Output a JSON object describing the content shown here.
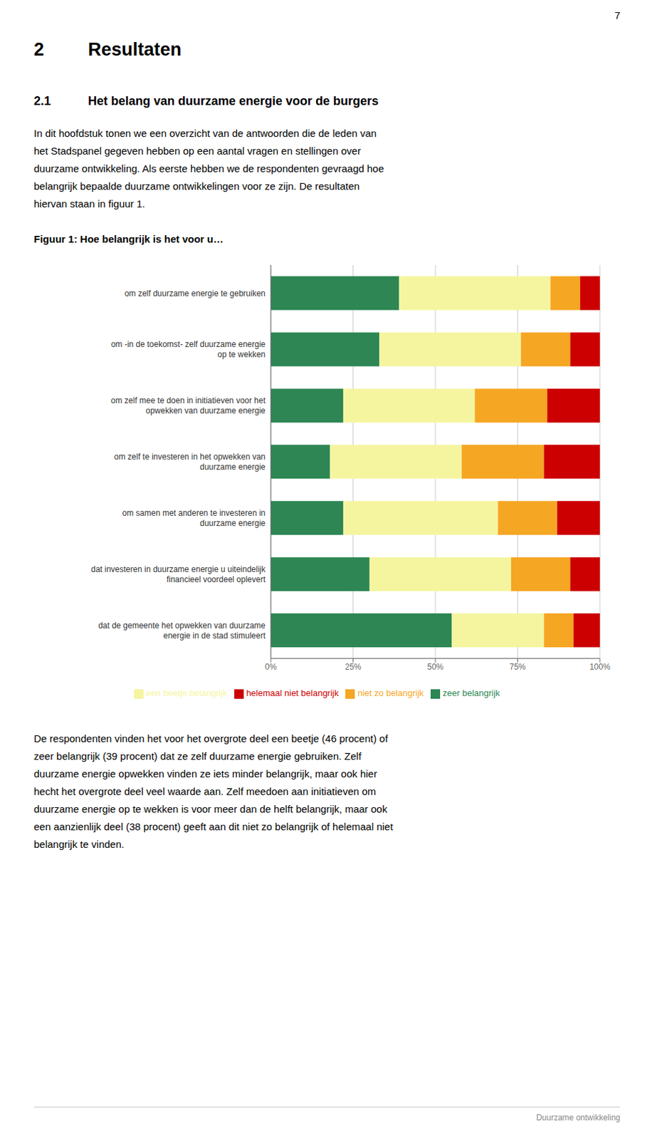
{
  "page_number": "7",
  "heading1_num": "2",
  "heading1_text": "Resultaten",
  "heading2_num": "2.1",
  "heading2_text": "Het belang van duurzame energie voor de burgers",
  "body_text1_lines": [
    "In dit hoofdstuk tonen we een overzicht van de antwoorden die de leden van",
    "het Stadspanel gegeven hebben op een aantal vragen en stellingen over",
    "duurzame ontwikkeling. Als eerste hebben we de respondenten gevraagd hoe",
    "belangrijk bepaalde duurzame ontwikkelingen voor ze zijn. De resultaten",
    "hiervan staan in figuur 1."
  ],
  "body_text2_lines": [
    "De respondenten vinden het voor het overgrote deel een beetje (46 procent) of",
    "zeer belangrijk (39 procent) dat ze zelf duurzame energie gebruiken. Zelf",
    "duurzame energie opwekken vinden ze iets minder belangrijk, maar ook hier",
    "hecht het overgrote deel veel waarde aan. Zelf meedoen aan initiatieven om",
    "duurzame energie op te wekken is voor meer dan de helft belangrijk, maar ook",
    "een aanzienlijk deel (38 procent) geeft aan dit niet zo belangrijk of helemaal niet",
    "belangrijk te vinden."
  ],
  "footer_text": "Duurzame ontwikkeling",
  "chart_data": {
    "type": "bar",
    "orientation": "horizontal",
    "stacked": true,
    "title": "Figuur 1: Hoe belangrijk is het voor u…",
    "categories": [
      "om zelf duurzame energie te gebruiken",
      "om -in de toekomst- zelf duurzame energie\nop te wekken",
      "om zelf mee te doen in initiatieven voor het\nopwekken van duurzame energie",
      "om zelf te investeren in het opwekken van\nduurzame energie",
      "om samen met anderen te investeren in\nduurzame energie",
      "dat investeren in duurzame energie u uiteindelijk\nfinancieel voordeel oplevert",
      "dat de gemeente het opwekken van duurzame\nenergie in de stad stimuleert"
    ],
    "series": [
      {
        "name": "zeer belangrijk",
        "color": "#2d8653",
        "values": [
          39,
          33,
          22,
          18,
          22,
          30,
          55
        ]
      },
      {
        "name": "een beetje belangrijk",
        "color": "#f5f5a0",
        "values": [
          46,
          43,
          40,
          40,
          47,
          43,
          28
        ]
      },
      {
        "name": "niet zo belangrijk",
        "color": "#f5a623",
        "values": [
          9,
          15,
          22,
          25,
          18,
          18,
          9
        ]
      },
      {
        "name": "helemaal niet belangrijk",
        "color": "#cc0000",
        "values": [
          6,
          9,
          16,
          17,
          13,
          9,
          8
        ]
      }
    ],
    "xlim": [
      0,
      100
    ],
    "xticks": [
      {
        "value": 0,
        "label": "0%"
      },
      {
        "value": 25,
        "label": "25%"
      },
      {
        "value": 50,
        "label": "50%"
      },
      {
        "value": 75,
        "label": "75%"
      },
      {
        "value": 100,
        "label": "100%"
      }
    ],
    "grid": true,
    "legend": "bottom"
  }
}
